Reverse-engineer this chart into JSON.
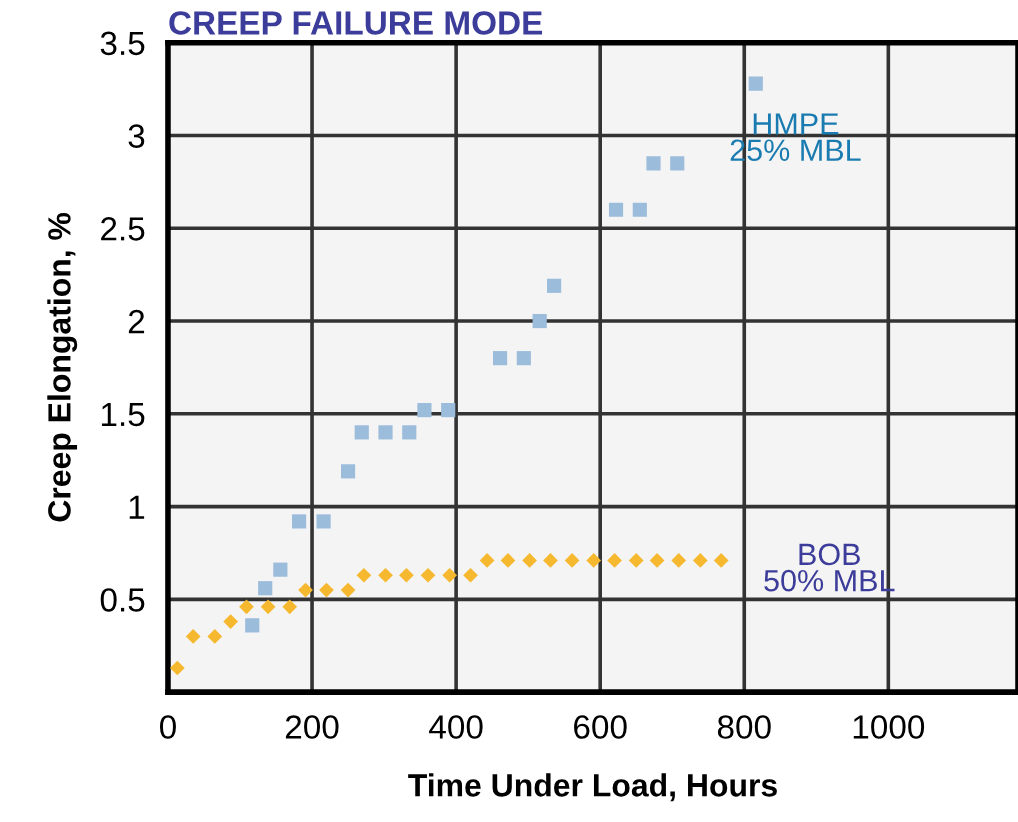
{
  "chart_data": {
    "type": "scatter",
    "title": "CREEP FAILURE MODE",
    "xlabel": "Time Under Load, Hours",
    "ylabel": "Creep Elongation, %",
    "xlim": [
      0,
      1180
    ],
    "ylim": [
      0,
      3.5
    ],
    "xticks": [
      0,
      200,
      400,
      600,
      800,
      1000
    ],
    "yticks": [
      0.5,
      1,
      1.5,
      2,
      2.5,
      3,
      3.5
    ],
    "grid": true,
    "legend": false,
    "series": [
      {
        "name": "HMPE\n25% MBL",
        "color": "#9bbcdb",
        "marker": "square",
        "x": [
          117,
          135,
          156,
          182,
          216,
          250,
          269,
          302,
          335,
          356,
          389,
          461,
          494,
          516,
          536,
          622,
          655,
          674,
          707,
          816
        ],
        "values": [
          0.36,
          0.56,
          0.66,
          0.92,
          0.92,
          1.19,
          1.4,
          1.4,
          1.4,
          1.52,
          1.52,
          1.8,
          1.8,
          2.0,
          2.19,
          2.6,
          2.6,
          2.85,
          2.85,
          3.28
        ]
      },
      {
        "name": "BOB\n50% MBL",
        "color": "#f5b82e",
        "marker": "diamond",
        "x": [
          13,
          35,
          65,
          87,
          109,
          139,
          169,
          191,
          220,
          250,
          272,
          302,
          331,
          361,
          391,
          420,
          443,
          472,
          502,
          531,
          561,
          591,
          620,
          650,
          679,
          709,
          739,
          768
        ],
        "values": [
          0.13,
          0.3,
          0.3,
          0.38,
          0.46,
          0.46,
          0.46,
          0.55,
          0.55,
          0.55,
          0.63,
          0.63,
          0.63,
          0.63,
          0.63,
          0.63,
          0.71,
          0.71,
          0.71,
          0.71,
          0.71,
          0.71,
          0.71,
          0.71,
          0.71,
          0.71,
          0.71,
          0.71
        ]
      }
    ]
  }
}
